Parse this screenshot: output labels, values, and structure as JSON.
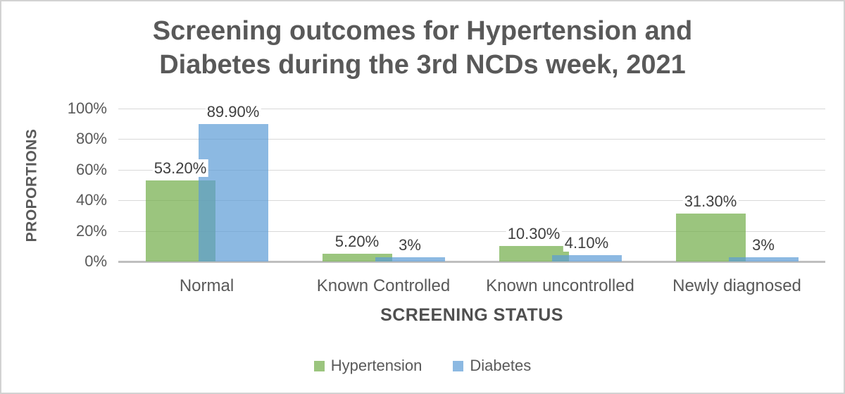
{
  "title": {
    "line1": "Screening outcomes for Hypertension and",
    "line2": "Diabetes during the 3rd NCDs week, 2021"
  },
  "chart_data": {
    "type": "bar",
    "title": "Screening outcomes for Hypertension and Diabetes during the 3rd NCDs week, 2021",
    "xlabel": "SCREENING STATUS",
    "ylabel": "PROPORTIONS",
    "categories": [
      "Normal",
      "Known Controlled",
      "Known uncontrolled",
      "Newly diagnosed"
    ],
    "series": [
      {
        "name": "Hypertension",
        "color": "#70AD47",
        "fill_opacity": 0.7,
        "values": [
          53.2,
          5.2,
          10.3,
          31.3
        ],
        "data_labels": [
          "53.20%",
          "5.20%",
          "10.30%",
          "31.30%"
        ]
      },
      {
        "name": "Diabetes",
        "color": "#5B9BD5",
        "fill_opacity": 0.7,
        "values": [
          89.9,
          3.0,
          4.1,
          3.0
        ],
        "data_labels": [
          "89.90%",
          "3%",
          "4.10%",
          "3%"
        ]
      }
    ],
    "ylim": [
      0,
      100
    ],
    "ytick_values": [
      0,
      20,
      40,
      60,
      80,
      100
    ],
    "ytick_labels": [
      "0%",
      "20%",
      "40%",
      "60%",
      "80%",
      "100%"
    ],
    "grid": true,
    "legend_position": "bottom",
    "bar_style": "grouped-overlapping",
    "colors": {
      "gridline": "#d9d9d9",
      "axis_line": "#bfbfbf",
      "title_text": "#595959",
      "tick_text": "#595959",
      "data_label_text": "#3f3f3f"
    }
  }
}
